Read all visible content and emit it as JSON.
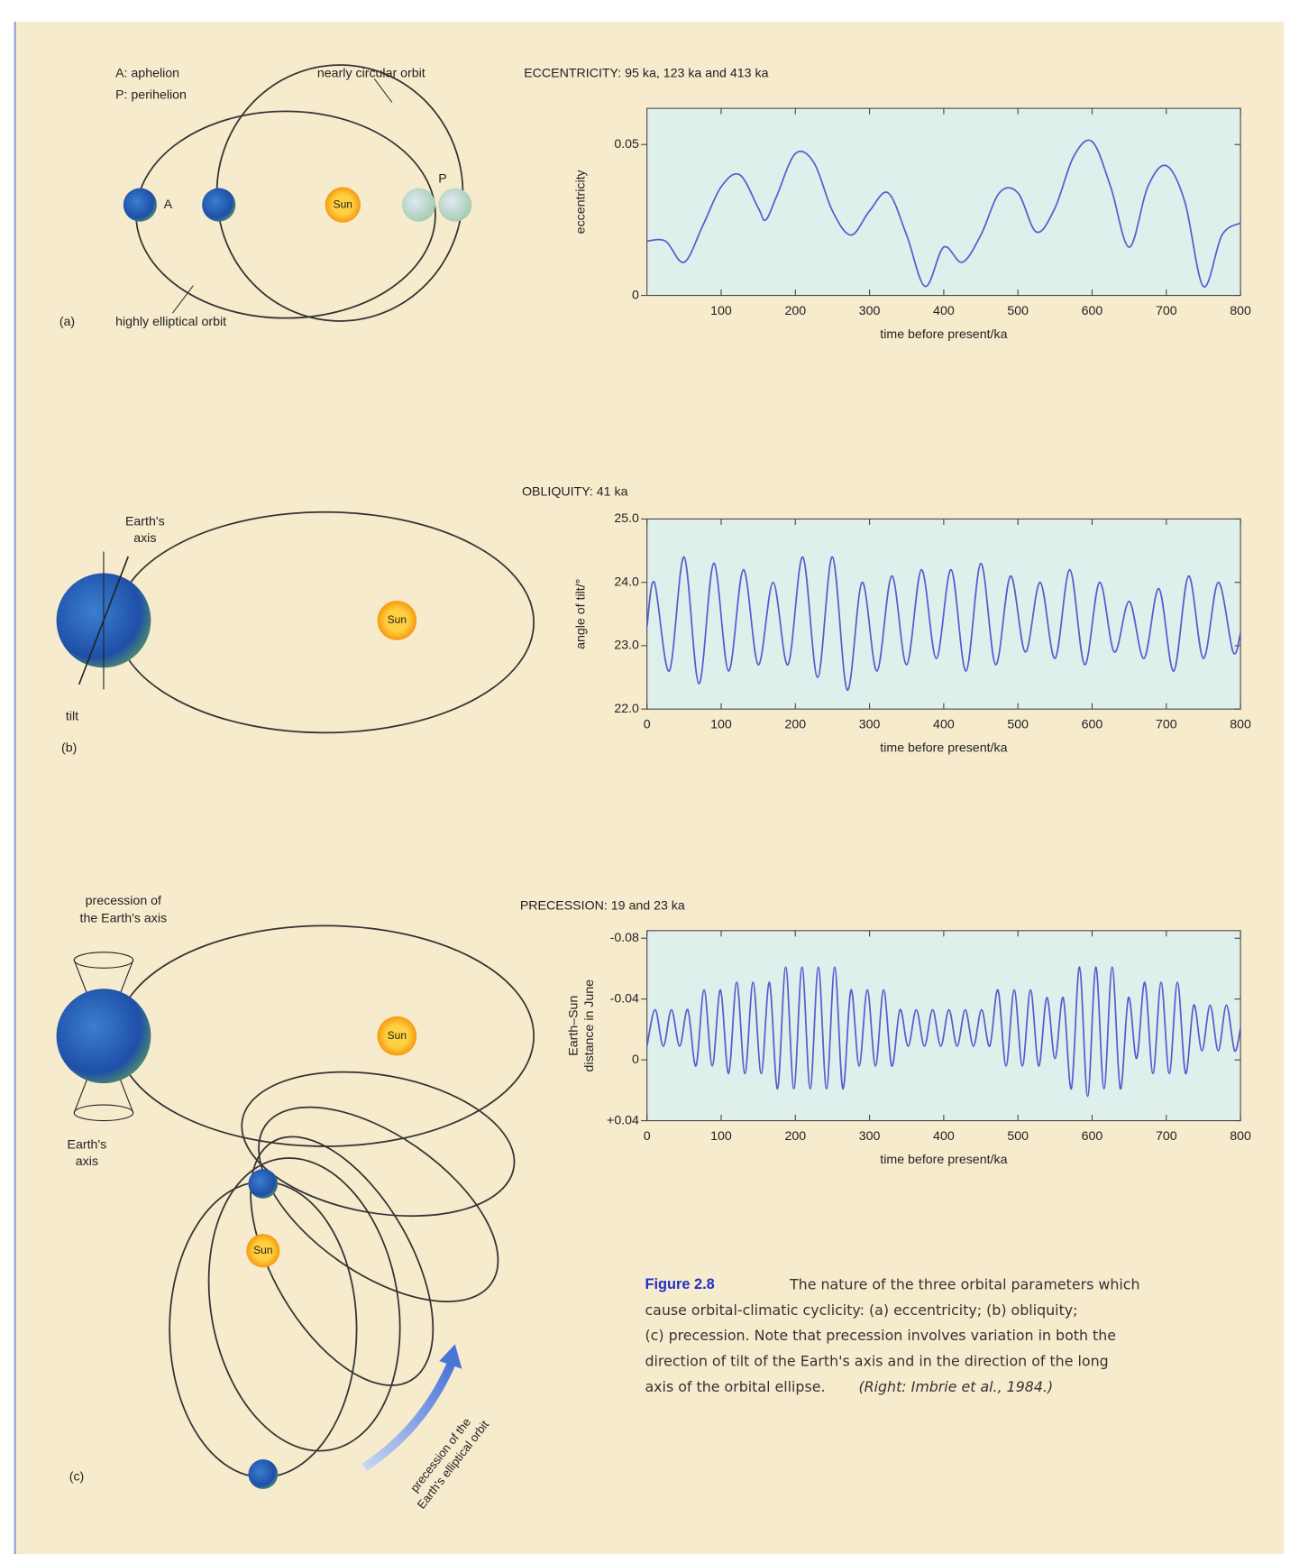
{
  "chart_data": [
    {
      "type": "line",
      "title": "ECCENTRICITY: 95 ka, 123 ka and 413 ka",
      "xlabel": "time before present/ka",
      "ylabel": "eccentricity",
      "x": [
        0,
        25,
        50,
        75,
        100,
        125,
        150,
        160,
        175,
        200,
        225,
        250,
        275,
        300,
        325,
        350,
        375,
        400,
        425,
        450,
        475,
        500,
        525,
        550,
        575,
        600,
        625,
        650,
        675,
        700,
        725,
        750,
        775,
        800
      ],
      "values": [
        0.018,
        0.018,
        0.011,
        0.023,
        0.036,
        0.04,
        0.029,
        0.025,
        0.033,
        0.047,
        0.044,
        0.028,
        0.02,
        0.028,
        0.034,
        0.02,
        0.003,
        0.016,
        0.011,
        0.02,
        0.034,
        0.034,
        0.021,
        0.029,
        0.046,
        0.051,
        0.036,
        0.016,
        0.036,
        0.043,
        0.031,
        0.003,
        0.02,
        0.024
      ],
      "color": "#5b5bd0",
      "xlim": [
        0,
        800
      ],
      "ylim": [
        0,
        0.062
      ],
      "xticks": [
        100,
        200,
        300,
        400,
        500,
        600,
        700,
        800
      ],
      "yticks": [
        0,
        0.05
      ]
    },
    {
      "type": "line",
      "title": "OBLIQUITY: 41 ka",
      "xlabel": "time before present/ka",
      "ylabel": "angle of tilt/°",
      "x": [
        0,
        10,
        30,
        50,
        70,
        90,
        110,
        130,
        150,
        170,
        190,
        210,
        230,
        250,
        270,
        290,
        310,
        330,
        350,
        370,
        390,
        410,
        430,
        450,
        470,
        490,
        510,
        530,
        550,
        570,
        590,
        610,
        630,
        650,
        670,
        690,
        710,
        730,
        750,
        770,
        790,
        800
      ],
      "values": [
        23.3,
        24.0,
        22.6,
        24.4,
        22.4,
        24.3,
        22.6,
        24.2,
        22.7,
        24.0,
        22.7,
        24.4,
        22.5,
        24.4,
        22.3,
        24.0,
        22.6,
        24.1,
        22.7,
        24.2,
        22.8,
        24.2,
        22.6,
        24.3,
        22.7,
        24.1,
        22.9,
        24.0,
        22.8,
        24.2,
        22.7,
        24.0,
        22.9,
        23.7,
        22.8,
        23.9,
        22.6,
        24.1,
        22.8,
        24.0,
        22.9,
        23.2
      ],
      "color": "#5b5bd0",
      "xlim": [
        0,
        800
      ],
      "ylim": [
        22,
        25
      ],
      "xticks": [
        0,
        100,
        200,
        300,
        400,
        500,
        600,
        700,
        800
      ],
      "yticks": [
        {
          "value": 22,
          "label": "22.0"
        },
        {
          "value": 23,
          "label": "23.0"
        },
        {
          "value": 24,
          "label": "24.0"
        },
        {
          "value": 25,
          "label": "25.0"
        }
      ]
    },
    {
      "type": "line",
      "title": "PRECESSION: 19 and 23 ka",
      "xlabel": "time before present/ka",
      "ylabel": [
        "Earth–Sun",
        "distance in June"
      ],
      "x": [
        0,
        11,
        22,
        33,
        44,
        55,
        66,
        77,
        88,
        99,
        110,
        121,
        132,
        143,
        154,
        165,
        176,
        187,
        198,
        209,
        220,
        231,
        242,
        253,
        264,
        275,
        286,
        297,
        308,
        319,
        330,
        341,
        352,
        363,
        374,
        385,
        396,
        407,
        418,
        429,
        440,
        451,
        462,
        473,
        484,
        495,
        506,
        517,
        528,
        539,
        550,
        561,
        572,
        583,
        594,
        605,
        616,
        627,
        638,
        649,
        660,
        671,
        682,
        693,
        704,
        715,
        726,
        737,
        748,
        759,
        770,
        781,
        792,
        800
      ],
      "values": [
        -0.009,
        -0.033,
        -0.009,
        -0.033,
        -0.009,
        -0.033,
        0.004,
        -0.046,
        0.004,
        -0.046,
        0.009,
        -0.051,
        0.009,
        -0.051,
        0.009,
        -0.051,
        0.019,
        -0.061,
        0.019,
        -0.061,
        0.019,
        -0.061,
        0.019,
        -0.061,
        0.019,
        -0.046,
        0.004,
        -0.046,
        0.004,
        -0.046,
        0.004,
        -0.033,
        -0.009,
        -0.033,
        -0.009,
        -0.033,
        -0.009,
        -0.033,
        -0.009,
        -0.033,
        -0.009,
        -0.033,
        -0.009,
        -0.046,
        0.004,
        -0.046,
        0.004,
        -0.046,
        0.004,
        -0.041,
        -0.001,
        -0.041,
        0.019,
        -0.061,
        0.024,
        -0.061,
        0.019,
        -0.061,
        0.019,
        -0.041,
        -0.001,
        -0.051,
        0.009,
        -0.051,
        0.009,
        -0.051,
        0.009,
        -0.036,
        -0.006,
        -0.036,
        -0.006,
        -0.036,
        -0.006,
        -0.021
      ],
      "color": "#5b5bd0",
      "xlim": [
        0,
        800
      ],
      "ylim": [
        0.04,
        -0.085
      ],
      "xticks": [
        0,
        100,
        200,
        300,
        400,
        500,
        600,
        700,
        800
      ],
      "yticks": [
        -0.08,
        -0.04,
        0,
        {
          "value": 0.04,
          "label": "+0.04"
        }
      ]
    }
  ],
  "diagram": {
    "a": {
      "key_a": "A:  aphelion",
      "key_p": "P:  perihelion",
      "circular": "nearly circular orbit",
      "elliptical": "highly elliptical orbit",
      "a": "A",
      "p": "P",
      "sun": "Sun",
      "panel": "(a)"
    },
    "b": {
      "axis": [
        "Earth's",
        "axis"
      ],
      "tilt": "tilt",
      "sun": "Sun",
      "panel": "(b)"
    },
    "c": {
      "precession_axis": [
        "precession of",
        "the Earth's axis"
      ],
      "axis": [
        "Earth's",
        "axis"
      ],
      "sun": "Sun",
      "sun2": "Sun",
      "orbit": [
        "precession of the",
        "Earth's elliptical orbit"
      ],
      "panel": "(c)"
    }
  },
  "caption": {
    "label": "Figure 2.8",
    "lines": [
      "The nature of the three orbital parameters which",
      "cause orbital-climatic cyclicity: (a) eccentricity; (b) obliquity;",
      "(c) precession. Note that precession involves variation in both the",
      "direction of tilt of the Earth's axis and in the direction of the long",
      "axis of the orbital ellipse."
    ],
    "source": "(Right: Imbrie et al., 1984.)"
  }
}
